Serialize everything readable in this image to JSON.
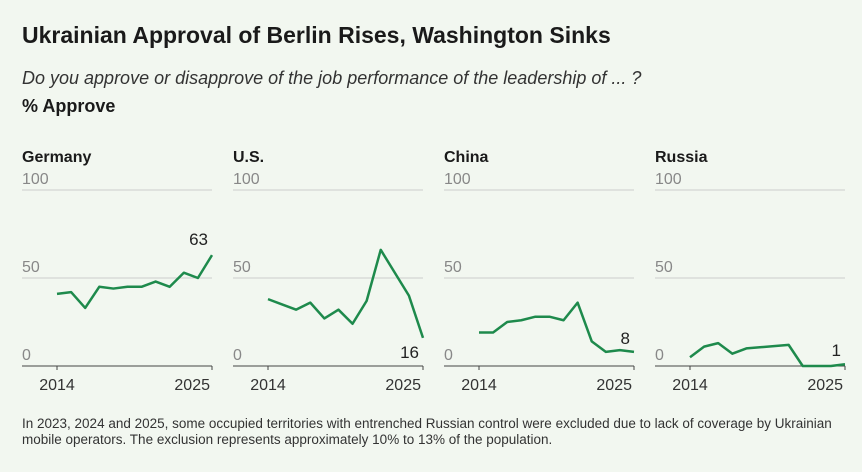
{
  "title": "Ukrainian Approval of Berlin Rises, Washington Sinks",
  "subtitle": "Do you approve or disapprove of the job performance of the leadership of ... ?",
  "ylabel": "% Approve",
  "note": "In 2023, 2024 and 2025, some occupied territories with entrenched Russian control were excluded due to lack of coverage by Ukrainian mobile operators. The exclusion represents approximately 10% to 13% of the population.",
  "chart_data": [
    {
      "type": "line",
      "title": "Germany",
      "color": "#1e8a4c",
      "label_last": true,
      "x": [
        2014,
        2015,
        2016,
        2017,
        2018,
        2019,
        2020,
        2021,
        2022,
        2023,
        2024,
        2025
      ],
      "values": [
        41,
        42,
        33,
        45,
        44,
        45,
        45,
        48,
        45,
        53,
        50,
        63
      ],
      "xlim": [
        2014,
        2025
      ],
      "xticks": [
        2014,
        2025
      ],
      "ylim": [
        0,
        100
      ],
      "yticks": [
        0,
        50,
        100
      ]
    },
    {
      "type": "line",
      "title": "U.S.",
      "color": "#1e8a4c",
      "label_last": true,
      "x": [
        2014,
        2015,
        2016,
        2017,
        2018,
        2019,
        2020,
        2021,
        2022,
        2023,
        2024,
        2025
      ],
      "values": [
        38,
        35,
        32,
        36,
        27,
        32,
        24,
        37,
        66,
        53,
        40,
        16
      ],
      "xlim": [
        2014,
        2025
      ],
      "xticks": [
        2014,
        2025
      ],
      "ylim": [
        0,
        100
      ],
      "yticks": [
        0,
        50,
        100
      ]
    },
    {
      "type": "line",
      "title": "China",
      "color": "#1e8a4c",
      "label_last": true,
      "x": [
        2014,
        2015,
        2016,
        2017,
        2018,
        2019,
        2020,
        2021,
        2022,
        2023,
        2024,
        2025
      ],
      "values": [
        19,
        19,
        25,
        26,
        28,
        28,
        26,
        36,
        14,
        8,
        9,
        8
      ],
      "xlim": [
        2014,
        2025
      ],
      "xticks": [
        2014,
        2025
      ],
      "ylim": [
        0,
        100
      ],
      "yticks": [
        0,
        50,
        100
      ]
    },
    {
      "type": "line",
      "title": "Russia",
      "color": "#1e8a4c",
      "label_last": true,
      "x": [
        2014,
        2015,
        2016,
        2017,
        2018,
        2021,
        2022,
        2024,
        2025
      ],
      "values": [
        5,
        11,
        13,
        7,
        10,
        12,
        0,
        0,
        1
      ],
      "xlim": [
        2014,
        2025
      ],
      "xticks": [
        2014,
        2025
      ],
      "ylim": [
        0,
        100
      ],
      "yticks": [
        0,
        50,
        100
      ]
    }
  ]
}
